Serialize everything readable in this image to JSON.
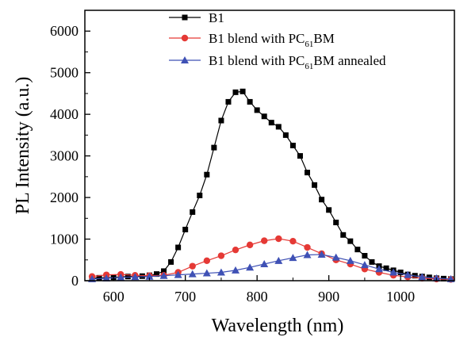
{
  "chart_data": {
    "type": "line",
    "xlabel": "Wavelength (nm)",
    "ylabel": "PL Intensity (a.u.)",
    "xlim": [
      560,
      1075
    ],
    "ylim": [
      0,
      6500
    ],
    "x_ticks": [
      600,
      700,
      800,
      900,
      1000
    ],
    "y_ticks": [
      0,
      1000,
      2000,
      3000,
      4000,
      5000,
      6000
    ],
    "x_tick_labels": [
      "600",
      "700",
      "800",
      "900",
      "1000"
    ],
    "y_tick_labels": [
      "0",
      "1000",
      "2000",
      "3000",
      "4000",
      "5000",
      "6000"
    ],
    "grid": false,
    "legend_position": "top-center",
    "series": [
      {
        "name": "B1",
        "legend_parts": [
          "B1",
          "",
          ""
        ],
        "color": "#000000",
        "marker": "square",
        "x": [
          570,
          580,
          590,
          600,
          610,
          620,
          630,
          640,
          650,
          660,
          670,
          680,
          690,
          700,
          710,
          720,
          730,
          740,
          750,
          760,
          770,
          780,
          790,
          800,
          810,
          820,
          830,
          840,
          850,
          860,
          870,
          880,
          890,
          900,
          910,
          920,
          930,
          940,
          950,
          960,
          970,
          980,
          990,
          1000,
          1010,
          1020,
          1030,
          1040,
          1050,
          1060,
          1070
        ],
        "y": [
          60,
          70,
          70,
          80,
          90,
          100,
          100,
          110,
          130,
          160,
          230,
          450,
          800,
          1230,
          1650,
          2050,
          2550,
          3200,
          3850,
          4300,
          4530,
          4550,
          4300,
          4100,
          3950,
          3800,
          3700,
          3500,
          3250,
          3000,
          2600,
          2300,
          1950,
          1700,
          1400,
          1100,
          950,
          750,
          600,
          450,
          350,
          300,
          250,
          200,
          150,
          120,
          100,
          80,
          60,
          50,
          40
        ]
      },
      {
        "name": "B1 blend with PC61BM",
        "legend_parts": [
          "B1 blend with PC",
          "61",
          "BM"
        ],
        "color": "#e53935",
        "marker": "circle",
        "x": [
          570,
          590,
          610,
          630,
          650,
          670,
          690,
          710,
          730,
          750,
          770,
          790,
          810,
          830,
          850,
          870,
          890,
          910,
          930,
          950,
          970,
          990,
          1010,
          1030,
          1050,
          1070
        ],
        "y": [
          100,
          140,
          150,
          130,
          120,
          130,
          200,
          350,
          480,
          600,
          740,
          860,
          960,
          1010,
          950,
          800,
          650,
          500,
          400,
          280,
          200,
          130,
          90,
          60,
          40,
          30
        ]
      },
      {
        "name": "B1 blend with PC61BM annealed",
        "legend_parts": [
          "B1 blend with PC",
          "61",
          "BM annealed"
        ],
        "color": "#3f51b5",
        "marker": "triangle",
        "x": [
          570,
          590,
          610,
          630,
          650,
          670,
          690,
          710,
          730,
          750,
          770,
          790,
          810,
          830,
          850,
          870,
          890,
          910,
          930,
          950,
          970,
          990,
          1010,
          1030,
          1050,
          1070
        ],
        "y": [
          40,
          60,
          80,
          90,
          100,
          120,
          140,
          160,
          180,
          200,
          250,
          320,
          400,
          480,
          550,
          620,
          630,
          560,
          480,
          380,
          280,
          200,
          140,
          90,
          60,
          40
        ]
      }
    ]
  }
}
